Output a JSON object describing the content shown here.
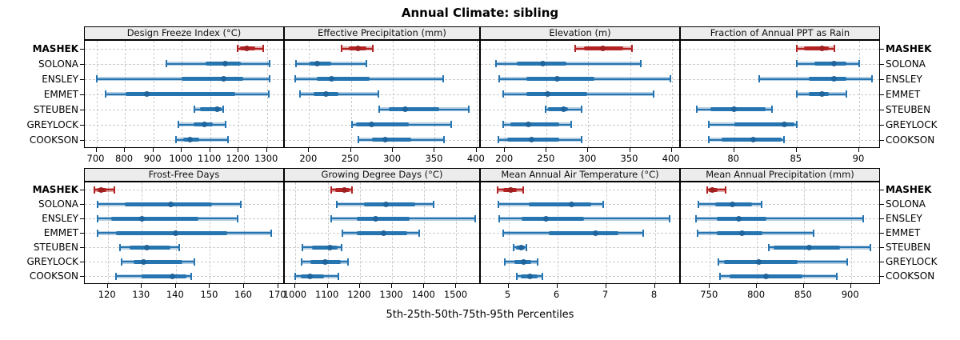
{
  "title": "Annual Climate: sibling",
  "xlabel": "5th-25th-50th-75th-95th Percentiles",
  "highlight_site": "MASHEK",
  "colors": {
    "highlight_line": "#b22222",
    "highlight_band": "rgba(178,34,34,0.38)",
    "highlight_dot": "#9e1f1f",
    "normal_line": "#2674b0",
    "normal_band": "rgba(38,116,176,0.35)",
    "normal_dot": "#20649c",
    "strip_bg": "#ececec",
    "grid": "#cccccc"
  },
  "chart_data": {
    "type": "percentile-dot-whisker",
    "percentiles": [
      5,
      25,
      50,
      75,
      95
    ],
    "sites": [
      "MASHEK",
      "SOLONA",
      "ENSLEY",
      "EMMET",
      "STEUBEN",
      "GREYLOCK",
      "COOKSON"
    ],
    "panels": [
      {
        "title": "Design Freeze Index (°C)",
        "domain": [
          662,
          1357
        ],
        "ticks": [
          700,
          800,
          900,
          1000,
          1100,
          1200,
          1300
        ],
        "series": [
          [
            1197,
            1205,
            1229,
            1258,
            1286
          ],
          [
            945,
            1085,
            1153,
            1207,
            1308
          ],
          [
            700,
            1000,
            1146,
            1215,
            1308
          ],
          [
            733,
            803,
            877,
            1188,
            1306
          ],
          [
            1046,
            1065,
            1126,
            1140,
            1146
          ],
          [
            988,
            1042,
            1079,
            1110,
            1155
          ],
          [
            979,
            1006,
            1029,
            1062,
            1164
          ]
        ]
      },
      {
        "title": "Effective Precipitation (mm)",
        "domain": [
          172,
          403
        ],
        "ticks": [
          200,
          250,
          300,
          350,
          400
        ],
        "series": [
          [
            239,
            247,
            258,
            268,
            276
          ],
          [
            184,
            201,
            210,
            226,
            268
          ],
          [
            183,
            209,
            227,
            272,
            360
          ],
          [
            189,
            205,
            220,
            235,
            283
          ],
          [
            284,
            295,
            315,
            355,
            391
          ],
          [
            251,
            256,
            275,
            319,
            370
          ],
          [
            259,
            275,
            291,
            322,
            361
          ]
        ]
      },
      {
        "title": "Elevation (m)",
        "domain": [
          172,
          409
        ],
        "ticks": [
          200,
          250,
          300,
          350,
          400
        ],
        "series": [
          [
            284,
            295,
            317,
            342,
            352
          ],
          [
            189,
            214,
            245,
            274,
            363
          ],
          [
            193,
            226,
            263,
            307,
            398
          ],
          [
            198,
            226,
            251,
            299,
            378
          ],
          [
            249,
            252,
            270,
            276,
            292
          ],
          [
            198,
            207,
            228,
            265,
            279
          ],
          [
            192,
            203,
            232,
            265,
            292
          ]
        ]
      },
      {
        "title": "Fraction of Annual PPT as Rain",
        "domain": [
          75.8,
          91.6
        ],
        "ticks": [
          80,
          85,
          90
        ],
        "series": [
          [
            85.0,
            85.6,
            87.0,
            87.6,
            88.0
          ],
          [
            85.0,
            86.4,
            88.0,
            89.0,
            90.0
          ],
          [
            82.0,
            86.0,
            88.0,
            89.0,
            91.0
          ],
          [
            85.0,
            86.0,
            87.0,
            87.6,
            89.0
          ],
          [
            77.0,
            78.1,
            80.0,
            82.5,
            83.0
          ],
          [
            78.0,
            80.0,
            84.0,
            84.8,
            85.0
          ],
          [
            78.0,
            79.0,
            81.5,
            83.8,
            84.0
          ]
        ]
      },
      {
        "title": "Frost-Free Days",
        "domain": [
          113.5,
          171.5
        ],
        "ticks": [
          120,
          130,
          140,
          150,
          160,
          170
        ],
        "series": [
          [
            116,
            117,
            118,
            119.5,
            122
          ],
          [
            117,
            125,
            138.5,
            150.5,
            159
          ],
          [
            117,
            121,
            130,
            146.5,
            158
          ],
          [
            117,
            122.5,
            140,
            155,
            168
          ],
          [
            123.5,
            126.5,
            131.5,
            138.5,
            141
          ],
          [
            124,
            127.5,
            130.5,
            142,
            145.5
          ],
          [
            122.5,
            130,
            139,
            143,
            144.5
          ]
        ]
      },
      {
        "title": "Growing Degree Days (°C)",
        "domain": [
          969,
          1571
        ],
        "ticks": [
          1000,
          1100,
          1200,
          1300,
          1400,
          1500
        ],
        "series": [
          [
            1111,
            1124,
            1151,
            1169,
            1175
          ],
          [
            1129,
            1212,
            1280,
            1373,
            1430
          ],
          [
            1112,
            1190,
            1250,
            1354,
            1559
          ],
          [
            1146,
            1190,
            1273,
            1347,
            1385
          ],
          [
            1021,
            1051,
            1106,
            1131,
            1144
          ],
          [
            1019,
            1047,
            1091,
            1140,
            1163
          ],
          [
            1000,
            1017,
            1044,
            1089,
            1132
          ]
        ]
      },
      {
        "title": "Mean Annual Air Temperature (°C)",
        "domain": [
          4.45,
          8.5
        ],
        "ticks": [
          5,
          6,
          7,
          8
        ],
        "series": [
          [
            4.77,
            4.9,
            5.05,
            5.17,
            5.31
          ],
          [
            4.8,
            5.41,
            6.3,
            6.7,
            6.94
          ],
          [
            4.81,
            5.27,
            5.77,
            6.55,
            8.31
          ],
          [
            4.89,
            5.82,
            6.78,
            7.26,
            7.76
          ],
          [
            5.1,
            5.15,
            5.26,
            5.33,
            5.37
          ],
          [
            4.92,
            5.12,
            5.31,
            5.47,
            5.6
          ],
          [
            5.17,
            5.25,
            5.44,
            5.6,
            5.69
          ]
        ]
      },
      {
        "title": "Mean Annual Precipitation (mm)",
        "domain": [
          720,
          930
        ],
        "ticks": [
          750,
          800,
          850,
          900
        ],
        "series": [
          [
            747,
            749,
            753,
            758,
            767
          ],
          [
            738,
            756,
            774,
            795,
            805
          ],
          [
            735,
            757,
            781,
            810,
            913
          ],
          [
            737,
            757,
            784,
            806,
            860
          ],
          [
            813,
            818,
            856,
            888,
            921
          ],
          [
            759,
            765,
            802,
            843,
            896
          ],
          [
            761,
            771,
            810,
            848,
            885
          ]
        ]
      }
    ]
  }
}
